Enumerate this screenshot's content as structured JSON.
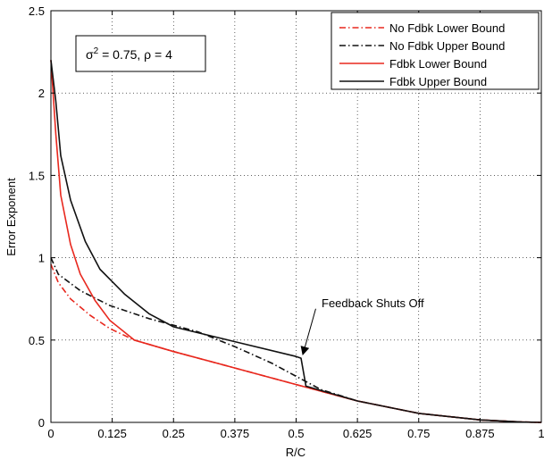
{
  "chart_data": {
    "type": "line",
    "title": "",
    "xlabel": "R/C",
    "ylabel": "Error Exponent",
    "xlim": [
      0,
      1
    ],
    "ylim": [
      0,
      2.5
    ],
    "x_ticks": [
      0,
      0.125,
      0.25,
      0.375,
      0.5,
      0.625,
      0.75,
      0.875,
      1
    ],
    "x_tick_labels": [
      "0",
      "0.125",
      "0.25",
      "0.375",
      "0.5",
      "0.625",
      "0.75",
      "0.875",
      "1"
    ],
    "y_ticks": [
      0,
      0.5,
      1,
      1.5,
      2,
      2.5
    ],
    "y_tick_labels": [
      "0",
      "0.5",
      "1",
      "1.5",
      "2",
      "2.5"
    ],
    "grid": true,
    "legend_position": "top-right",
    "param_box": {
      "sigma_symbol": "σ",
      "exponent": "2",
      "rest": " = 0.75, ρ = 4"
    },
    "annotation": {
      "text": "Feedback Shuts Off",
      "target": [
        0.51,
        0.39
      ],
      "text_anchor_point": [
        0.54,
        0.69
      ]
    },
    "series": [
      {
        "name": "No Fdbk Lower Bound",
        "color": "#e8281e",
        "dash": "dashdot",
        "points": [
          [
            0,
            0.96
          ],
          [
            0.015,
            0.85
          ],
          [
            0.04,
            0.75
          ],
          [
            0.08,
            0.65
          ],
          [
            0.12,
            0.57
          ],
          [
            0.17,
            0.5
          ],
          [
            0.25,
            0.43
          ],
          [
            0.375,
            0.33
          ],
          [
            0.5,
            0.23
          ],
          [
            0.625,
            0.13
          ],
          [
            0.75,
            0.055
          ],
          [
            0.875,
            0.015
          ],
          [
            0.96,
            0.002
          ],
          [
            1,
            0
          ]
        ]
      },
      {
        "name": "No Fdbk Upper Bound",
        "color": "#111111",
        "dash": "dashdot",
        "points": [
          [
            0,
            1.0
          ],
          [
            0.015,
            0.9
          ],
          [
            0.06,
            0.8
          ],
          [
            0.12,
            0.71
          ],
          [
            0.2,
            0.63
          ],
          [
            0.25,
            0.59
          ],
          [
            0.3,
            0.55
          ],
          [
            0.375,
            0.46
          ],
          [
            0.45,
            0.36
          ],
          [
            0.5,
            0.28
          ],
          [
            0.55,
            0.2
          ],
          [
            0.625,
            0.13
          ],
          [
            0.75,
            0.055
          ],
          [
            0.875,
            0.015
          ],
          [
            0.96,
            0.002
          ],
          [
            1,
            0
          ]
        ]
      },
      {
        "name": "Fdbk Lower Bound",
        "color": "#e8281e",
        "dash": "solid",
        "points": [
          [
            0,
            2.2
          ],
          [
            0.01,
            1.75
          ],
          [
            0.02,
            1.38
          ],
          [
            0.04,
            1.08
          ],
          [
            0.06,
            0.9
          ],
          [
            0.09,
            0.74
          ],
          [
            0.12,
            0.62
          ],
          [
            0.17,
            0.5
          ],
          [
            0.25,
            0.43
          ],
          [
            0.375,
            0.33
          ],
          [
            0.5,
            0.23
          ],
          [
            0.625,
            0.13
          ],
          [
            0.75,
            0.055
          ],
          [
            0.875,
            0.015
          ],
          [
            0.96,
            0.002
          ],
          [
            1,
            0
          ]
        ]
      },
      {
        "name": "Fdbk Upper Bound",
        "color": "#111111",
        "dash": "solid",
        "points": [
          [
            0,
            2.2
          ],
          [
            0.01,
            1.95
          ],
          [
            0.02,
            1.62
          ],
          [
            0.04,
            1.35
          ],
          [
            0.07,
            1.1
          ],
          [
            0.1,
            0.93
          ],
          [
            0.15,
            0.78
          ],
          [
            0.2,
            0.66
          ],
          [
            0.25,
            0.58
          ],
          [
            0.375,
            0.49
          ],
          [
            0.5,
            0.4
          ],
          [
            0.51,
            0.39
          ],
          [
            0.52,
            0.22
          ],
          [
            0.625,
            0.13
          ],
          [
            0.75,
            0.055
          ],
          [
            0.875,
            0.015
          ],
          [
            0.96,
            0.002
          ],
          [
            1,
            0
          ]
        ]
      }
    ]
  }
}
